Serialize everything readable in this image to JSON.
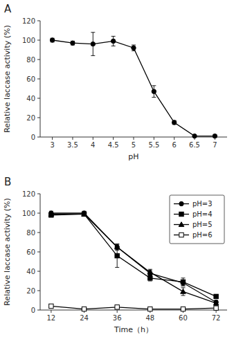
{
  "chart_data": [
    {
      "type": "line",
      "title": "A",
      "xlabel": "pH",
      "ylabel": "Relative laccase activity (%)",
      "x": [
        3,
        3.5,
        4,
        4.5,
        5,
        5.5,
        6,
        6.5,
        7
      ],
      "values": [
        100,
        97,
        96,
        99,
        92,
        47,
        15,
        1,
        1
      ],
      "errors": [
        2,
        2,
        12,
        5,
        3,
        6,
        2,
        1,
        1
      ],
      "color": "black",
      "marker": "circle",
      "xlim": [
        2.7,
        7.3
      ],
      "xticks": [
        3,
        3.5,
        4,
        4.5,
        5,
        5.5,
        6,
        6.5,
        7
      ],
      "ylim": [
        0,
        120
      ],
      "yticks": [
        0,
        20,
        40,
        60,
        80,
        100,
        120
      ]
    },
    {
      "type": "line",
      "title": "B",
      "xlabel": "Time（h）",
      "ylabel": "Relative laccase activity (%)",
      "x": [
        12,
        24,
        36,
        48,
        60,
        72
      ],
      "color": "black",
      "legend": "top-right",
      "series": [
        {
          "name": "pH=3",
          "values": [
            100,
            100,
            65,
            38,
            28,
            8
          ],
          "errors": [
            2,
            2,
            3,
            3,
            3,
            2
          ],
          "marker": "circle"
        },
        {
          "name": "pH=4",
          "values": [
            98,
            99,
            56,
            33,
            29,
            14
          ],
          "errors": [
            2,
            2,
            12,
            3,
            4,
            2
          ],
          "marker": "square"
        },
        {
          "name": "pH=5",
          "values": [
            99,
            99,
            65,
            39,
            19,
            7
          ],
          "errors": [
            2,
            2,
            3,
            3,
            4,
            2
          ],
          "marker": "triangle"
        },
        {
          "name": "pH=6",
          "values": [
            4,
            1,
            3,
            1,
            1,
            2
          ],
          "errors": [
            1,
            1,
            1,
            1,
            1,
            1
          ],
          "marker": "open-square"
        }
      ],
      "xlim": [
        8,
        76
      ],
      "xticks": [
        12,
        24,
        36,
        48,
        60,
        72
      ],
      "ylim": [
        0,
        120
      ],
      "yticks": [
        0,
        20,
        40,
        60,
        80,
        100,
        120
      ]
    }
  ]
}
